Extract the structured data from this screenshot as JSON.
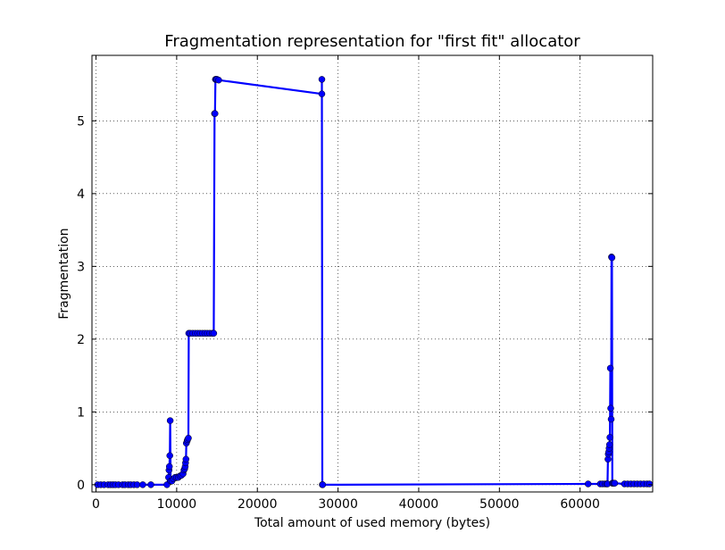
{
  "chart_data": {
    "type": "line",
    "title": "Fragmentation representation for \"first fit\" allocator",
    "xlabel": "Total amount of used memory (bytes)",
    "ylabel": "Fragmentation",
    "xlim": [
      -500,
      69000
    ],
    "ylim": [
      -0.1,
      5.9
    ],
    "x_ticks": [
      0,
      10000,
      20000,
      30000,
      40000,
      50000,
      60000
    ],
    "x_tick_labels": [
      "0",
      "10000",
      "20000",
      "30000",
      "40000",
      "50000",
      "60000"
    ],
    "y_ticks": [
      0,
      1,
      2,
      3,
      4,
      5
    ],
    "y_tick_labels": [
      "0",
      "1",
      "2",
      "3",
      "4",
      "5"
    ],
    "grid": true,
    "line_color": "#0000ff",
    "marker_color": "#0000ff",
    "series": [
      {
        "x": [
          200,
          600,
          1000,
          1500,
          1800,
          2100,
          2400,
          2800,
          3300,
          3600,
          4000,
          4300,
          4700,
          5100,
          5800,
          6800,
          8800,
          9000,
          9050,
          9100,
          9150,
          9200,
          9250,
          9400,
          9600,
          9800,
          10000,
          10200,
          10400,
          10600,
          10800,
          10900,
          11000,
          11050,
          11100,
          11150,
          11200,
          11300,
          11350,
          11450,
          11500,
          11700,
          12000,
          12300,
          12600,
          12900,
          13200,
          13500,
          13800,
          14100,
          14400,
          14600,
          14700,
          14750,
          14800,
          14900,
          15000,
          15200,
          28000,
          28000,
          28050,
          28100,
          61000,
          62500,
          62800,
          63100,
          63300,
          63400,
          63450,
          63500,
          63550,
          63600,
          63650,
          63700,
          63750,
          63800,
          63850,
          63900,
          63950,
          64000,
          64100,
          64200,
          64300,
          65500,
          65900,
          66300,
          66700,
          67100,
          67500,
          67900,
          68300,
          68600
        ],
        "y": [
          0,
          0,
          0,
          0,
          0,
          0,
          0,
          0,
          0,
          0,
          0,
          0,
          0,
          0,
          0,
          0,
          0,
          0.1,
          0.2,
          0.25,
          0.4,
          0.88,
          0.05,
          0.05,
          0.08,
          0.1,
          0.1,
          0.1,
          0.12,
          0.13,
          0.15,
          0.2,
          0.22,
          0.25,
          0.3,
          0.35,
          0.57,
          0.6,
          0.62,
          0.64,
          2.08,
          2.08,
          2.08,
          2.08,
          2.08,
          2.08,
          2.08,
          2.08,
          2.08,
          2.08,
          2.08,
          2.08,
          5.1,
          5.1,
          5.57,
          5.57,
          5.57,
          5.56,
          5.37,
          5.57,
          0,
          0,
          0.01,
          0.01,
          0.01,
          0.01,
          0.01,
          0.01,
          0.35,
          0.42,
          0.45,
          0.5,
          0.55,
          0.65,
          1.6,
          1.05,
          0.9,
          3.13,
          3.12,
          0.02,
          0.02,
          0.02,
          0.02,
          0.01,
          0.01,
          0.01,
          0.01,
          0.01,
          0.01,
          0.01,
          0.01,
          0.01
        ]
      }
    ]
  }
}
